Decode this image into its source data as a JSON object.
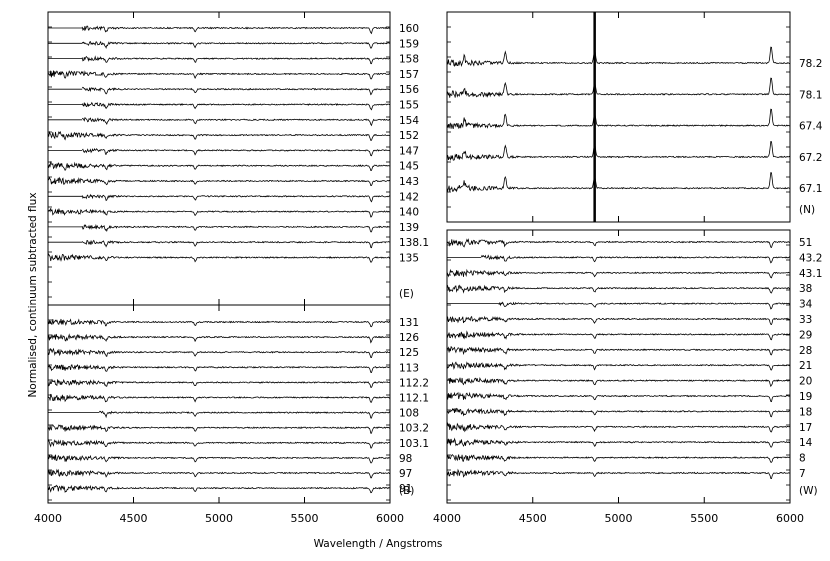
{
  "figure": {
    "xlabel": "Wavelength / Angstroms",
    "ylabel": "Normalised, continuum subtracted flux"
  },
  "chart_data": [
    {
      "type": "line",
      "panel": "left-top",
      "tag": "(E)",
      "xlim": [
        4000,
        6000
      ],
      "xticks": [],
      "series": [
        {
          "name": "160",
          "start": 4200
        },
        {
          "name": "159",
          "start": 4200
        },
        {
          "name": "158",
          "start": 4200
        },
        {
          "name": "157",
          "start": 4000
        },
        {
          "name": "156",
          "start": 4200
        },
        {
          "name": "155",
          "start": 4200
        },
        {
          "name": "154",
          "start": 4200
        },
        {
          "name": "152",
          "start": 4000
        },
        {
          "name": "147",
          "start": 4200
        },
        {
          "name": "145",
          "start": 4000
        },
        {
          "name": "143",
          "start": 4000
        },
        {
          "name": "142",
          "start": 4200
        },
        {
          "name": "140",
          "start": 4000
        },
        {
          "name": "139",
          "start": 4200
        },
        {
          "name": "138.1",
          "start": 4200
        },
        {
          "name": "135",
          "start": 4000
        }
      ]
    },
    {
      "type": "line",
      "panel": "left-bottom",
      "tag": "(B)",
      "xlim": [
        4000,
        6000
      ],
      "xticks": [
        4000,
        4500,
        5000,
        5500,
        6000
      ],
      "series": [
        {
          "name": "131",
          "start": 4000
        },
        {
          "name": "126",
          "start": 4000
        },
        {
          "name": "125",
          "start": 4000
        },
        {
          "name": "113",
          "start": 4000
        },
        {
          "name": "112.2",
          "start": 4000
        },
        {
          "name": "112.1",
          "start": 4000
        },
        {
          "name": "108",
          "start": 4300
        },
        {
          "name": "103.2",
          "start": 4000
        },
        {
          "name": "103.1",
          "start": 4000
        },
        {
          "name": "98",
          "start": 4000
        },
        {
          "name": "97",
          "start": 4000
        },
        {
          "name": "91",
          "start": 4000
        }
      ]
    },
    {
      "type": "line",
      "panel": "right-top",
      "tag": "(N)",
      "xlim": [
        4000,
        6000
      ],
      "xticks": [],
      "series": [
        {
          "name": "78.2",
          "start": 4000
        },
        {
          "name": "78.1",
          "start": 4000
        },
        {
          "name": "67.4",
          "start": 4000
        },
        {
          "name": "67.2",
          "start": 4000
        },
        {
          "name": "67.1",
          "start": 4000
        }
      ]
    },
    {
      "type": "line",
      "panel": "right-bottom",
      "tag": "(W)",
      "xlim": [
        4000,
        6000
      ],
      "xticks": [
        4000,
        4500,
        5000,
        5500,
        6000
      ],
      "series": [
        {
          "name": "51",
          "start": 4000
        },
        {
          "name": "43.2",
          "start": 4200
        },
        {
          "name": "43.1",
          "start": 4000
        },
        {
          "name": "38",
          "start": 4000
        },
        {
          "name": "34",
          "start": 4300
        },
        {
          "name": "33",
          "start": 4000
        },
        {
          "name": "29",
          "start": 4000
        },
        {
          "name": "28",
          "start": 4000
        },
        {
          "name": "21",
          "start": 4000
        },
        {
          "name": "20",
          "start": 4000
        },
        {
          "name": "19",
          "start": 4000
        },
        {
          "name": "18",
          "start": 4000
        },
        {
          "name": "17",
          "start": 4000
        },
        {
          "name": "14",
          "start": 4000
        },
        {
          "name": "8",
          "start": 4000
        },
        {
          "name": "7",
          "start": 4000
        }
      ]
    }
  ]
}
